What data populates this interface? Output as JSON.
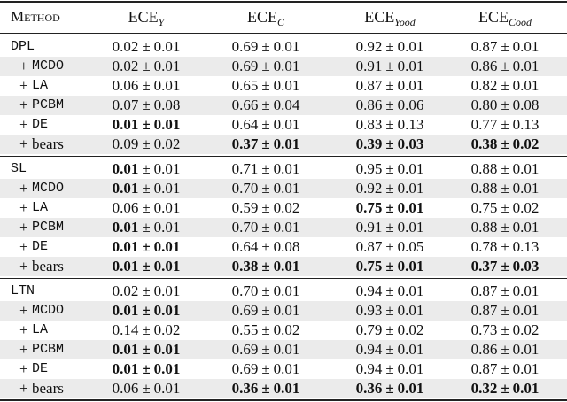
{
  "table": {
    "method_header": "Method",
    "columns": [
      {
        "base": "ECE",
        "sub": "Y"
      },
      {
        "base": "ECE",
        "sub": "C"
      },
      {
        "base": "ECE",
        "sub": "Yood"
      },
      {
        "base": "ECE",
        "sub": "Cood"
      }
    ],
    "separator": "±",
    "groups": [
      {
        "rows": [
          {
            "name": "DPL",
            "font": "mono",
            "cells": [
              {
                "mean": "0.02",
                "std": "0.01"
              },
              {
                "mean": "0.69",
                "std": "0.01"
              },
              {
                "mean": "0.92",
                "std": "0.01"
              },
              {
                "mean": "0.87",
                "std": "0.01"
              }
            ]
          },
          {
            "prefix": "+",
            "name": "MCDO",
            "font": "mono",
            "cells": [
              {
                "mean": "0.02",
                "std": "0.01"
              },
              {
                "mean": "0.69",
                "std": "0.01"
              },
              {
                "mean": "0.91",
                "std": "0.01"
              },
              {
                "mean": "0.86",
                "std": "0.01"
              }
            ]
          },
          {
            "prefix": "+",
            "name": "LA",
            "font": "mono",
            "cells": [
              {
                "mean": "0.06",
                "std": "0.01"
              },
              {
                "mean": "0.65",
                "std": "0.01"
              },
              {
                "mean": "0.87",
                "std": "0.01"
              },
              {
                "mean": "0.82",
                "std": "0.01"
              }
            ]
          },
          {
            "prefix": "+",
            "name": "PCBM",
            "font": "mono",
            "cells": [
              {
                "mean": "0.07",
                "std": "0.08"
              },
              {
                "mean": "0.66",
                "std": "0.04"
              },
              {
                "mean": "0.86",
                "std": "0.06"
              },
              {
                "mean": "0.80",
                "std": "0.08"
              }
            ]
          },
          {
            "prefix": "+",
            "name": "DE",
            "font": "mono",
            "cells": [
              {
                "mean": "0.01",
                "std": "0.01",
                "bold_mean": true,
                "bold_std": true
              },
              {
                "mean": "0.64",
                "std": "0.01"
              },
              {
                "mean": "0.83",
                "std": "0.13"
              },
              {
                "mean": "0.77",
                "std": "0.13"
              }
            ]
          },
          {
            "prefix": "+",
            "name": "bears",
            "font": "serif",
            "cells": [
              {
                "mean": "0.09",
                "std": "0.02"
              },
              {
                "mean": "0.37",
                "std": "0.01",
                "bold_mean": true,
                "bold_std": true
              },
              {
                "mean": "0.39",
                "std": "0.03",
                "bold_mean": true,
                "bold_std": true
              },
              {
                "mean": "0.38",
                "std": "0.02",
                "bold_mean": true,
                "bold_std": true
              }
            ]
          }
        ]
      },
      {
        "rows": [
          {
            "name": "SL",
            "font": "mono",
            "cells": [
              {
                "mean": "0.01",
                "std": "0.01",
                "bold_mean": true
              },
              {
                "mean": "0.71",
                "std": "0.01"
              },
              {
                "mean": "0.95",
                "std": "0.01"
              },
              {
                "mean": "0.88",
                "std": "0.01"
              }
            ]
          },
          {
            "prefix": "+",
            "name": "MCDO",
            "font": "mono",
            "cells": [
              {
                "mean": "0.01",
                "std": "0.01",
                "bold_mean": true
              },
              {
                "mean": "0.70",
                "std": "0.01"
              },
              {
                "mean": "0.92",
                "std": "0.01"
              },
              {
                "mean": "0.88",
                "std": "0.01"
              }
            ]
          },
          {
            "prefix": "+",
            "name": "LA",
            "font": "mono",
            "cells": [
              {
                "mean": "0.06",
                "std": "0.01"
              },
              {
                "mean": "0.59",
                "std": "0.02"
              },
              {
                "mean": "0.75",
                "std": "0.01",
                "bold_mean": true,
                "bold_std": true
              },
              {
                "mean": "0.75",
                "std": "0.02"
              }
            ]
          },
          {
            "prefix": "+",
            "name": "PCBM",
            "font": "mono",
            "cells": [
              {
                "mean": "0.01",
                "std": "0.01",
                "bold_mean": true
              },
              {
                "mean": "0.70",
                "std": "0.01"
              },
              {
                "mean": "0.91",
                "std": "0.01"
              },
              {
                "mean": "0.88",
                "std": "0.01"
              }
            ]
          },
          {
            "prefix": "+",
            "name": "DE",
            "font": "mono",
            "cells": [
              {
                "mean": "0.01",
                "std": "0.01",
                "bold_mean": true,
                "bold_std": true
              },
              {
                "mean": "0.64",
                "std": "0.08"
              },
              {
                "mean": "0.87",
                "std": "0.05"
              },
              {
                "mean": "0.78",
                "std": "0.13"
              }
            ]
          },
          {
            "prefix": "+",
            "name": "bears",
            "font": "serif",
            "cells": [
              {
                "mean": "0.01",
                "std": "0.01",
                "bold_mean": true,
                "bold_std": true
              },
              {
                "mean": "0.38",
                "std": "0.01",
                "bold_mean": true,
                "bold_std": true
              },
              {
                "mean": "0.75",
                "std": "0.01",
                "bold_mean": true,
                "bold_std": true
              },
              {
                "mean": "0.37",
                "std": "0.03",
                "bold_mean": true,
                "bold_std": true
              }
            ]
          }
        ]
      },
      {
        "rows": [
          {
            "name": "LTN",
            "font": "mono",
            "cells": [
              {
                "mean": "0.02",
                "std": "0.01"
              },
              {
                "mean": "0.70",
                "std": "0.01"
              },
              {
                "mean": "0.94",
                "std": "0.01"
              },
              {
                "mean": "0.87",
                "std": "0.01"
              }
            ]
          },
          {
            "prefix": "+",
            "name": "MCDO",
            "font": "mono",
            "cells": [
              {
                "mean": "0.01",
                "std": "0.01",
                "bold_mean": true,
                "bold_std": true
              },
              {
                "mean": "0.69",
                "std": "0.01"
              },
              {
                "mean": "0.93",
                "std": "0.01"
              },
              {
                "mean": "0.87",
                "std": "0.01"
              }
            ]
          },
          {
            "prefix": "+",
            "name": "LA",
            "font": "mono",
            "cells": [
              {
                "mean": "0.14",
                "std": "0.02"
              },
              {
                "mean": "0.55",
                "std": "0.02"
              },
              {
                "mean": "0.79",
                "std": "0.02"
              },
              {
                "mean": "0.73",
                "std": "0.02"
              }
            ]
          },
          {
            "prefix": "+",
            "name": "PCBM",
            "font": "mono",
            "cells": [
              {
                "mean": "0.01",
                "std": "0.01",
                "bold_mean": true,
                "bold_std": true
              },
              {
                "mean": "0.69",
                "std": "0.01"
              },
              {
                "mean": "0.94",
                "std": "0.01"
              },
              {
                "mean": "0.86",
                "std": "0.01"
              }
            ]
          },
          {
            "prefix": "+",
            "name": "DE",
            "font": "mono",
            "cells": [
              {
                "mean": "0.01",
                "std": "0.01",
                "bold_mean": true,
                "bold_std": true
              },
              {
                "mean": "0.69",
                "std": "0.01"
              },
              {
                "mean": "0.94",
                "std": "0.01"
              },
              {
                "mean": "0.87",
                "std": "0.01"
              }
            ]
          },
          {
            "prefix": "+",
            "name": "bears",
            "font": "serif",
            "cells": [
              {
                "mean": "0.06",
                "std": "0.01"
              },
              {
                "mean": "0.36",
                "std": "0.01",
                "bold_mean": true,
                "bold_std": true
              },
              {
                "mean": "0.36",
                "std": "0.01",
                "bold_mean": true,
                "bold_std": true
              },
              {
                "mean": "0.32",
                "std": "0.01",
                "bold_mean": true,
                "bold_std": true
              }
            ]
          }
        ]
      }
    ]
  }
}
